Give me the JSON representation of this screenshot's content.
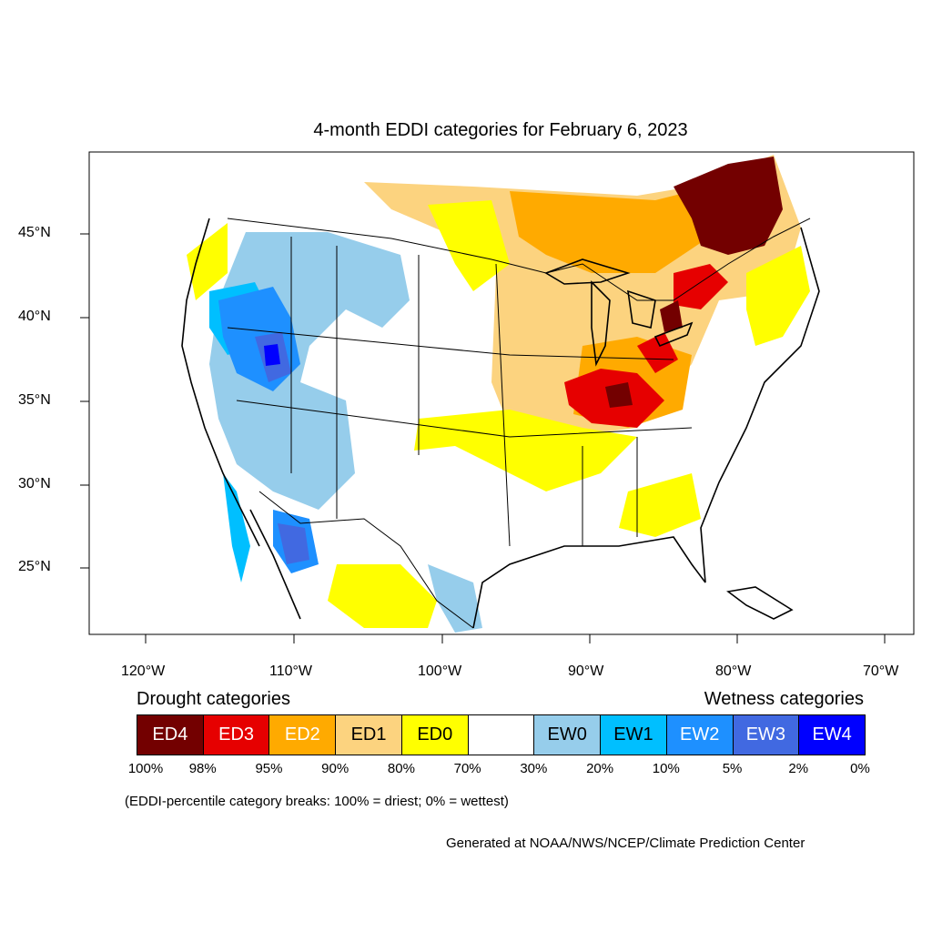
{
  "title": "4-month EDDI categories for February 6, 2023",
  "lat_ticks": [
    "45°N",
    "40°N",
    "35°N",
    "30°N",
    "25°N"
  ],
  "lon_ticks": [
    "120°W",
    "110°W",
    "100°W",
    "90°W",
    "80°W",
    "70°W"
  ],
  "legend": {
    "drought_title": "Drought categories",
    "wetness_title": "Wetness categories",
    "categories": [
      {
        "label": "ED4",
        "color": "#730000",
        "text_color": "#ffffff"
      },
      {
        "label": "ED3",
        "color": "#e60000",
        "text_color": "#ffffff"
      },
      {
        "label": "ED2",
        "color": "#ffaa00",
        "text_color": "#ffffff"
      },
      {
        "label": "ED1",
        "color": "#fcd37f",
        "text_color": "#000000"
      },
      {
        "label": "ED0",
        "color": "#ffff00",
        "text_color": "#000000"
      },
      {
        "label": "",
        "color": "#ffffff",
        "text_color": "#000000"
      },
      {
        "label": "EW0",
        "color": "#96cdeb",
        "text_color": "#000000"
      },
      {
        "label": "EW1",
        "color": "#00bfff",
        "text_color": "#000000"
      },
      {
        "label": "EW2",
        "color": "#1e90ff",
        "text_color": "#ffffff"
      },
      {
        "label": "EW3",
        "color": "#4169e1",
        "text_color": "#ffffff"
      },
      {
        "label": "EW4",
        "color": "#0000ff",
        "text_color": "#ffffff"
      }
    ],
    "breaks": [
      "100%",
      "98%",
      "95%",
      "90%",
      "80%",
      "70%",
      "30%",
      "20%",
      "10%",
      "5%",
      "2%",
      "0%"
    ]
  },
  "note": "(EDDI-percentile category breaks: 100% = driest; 0% = wettest)",
  "credit": "Generated at NOAA/NWS/NCEP/Climate Prediction Center"
}
